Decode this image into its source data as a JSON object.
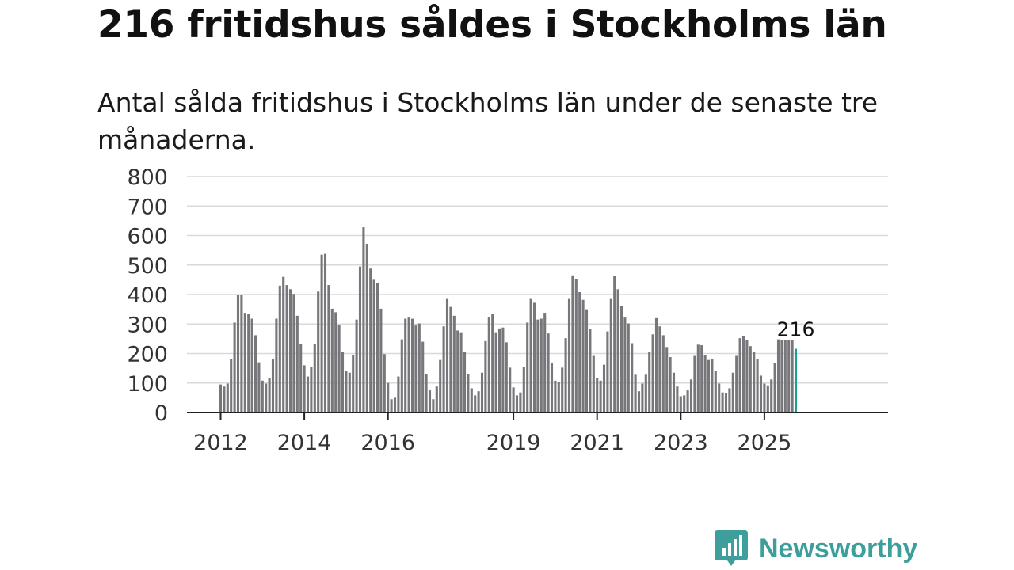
{
  "title": "216 fritidshus såldes i Stockholms län",
  "subtitle": "Antal sålda fritidshus i Stockholms län under de senaste tre månaderna.",
  "brand": "Newsworthy",
  "colors": {
    "bar": "#77777b",
    "highlight": "#1a9e96",
    "grid": "#d9d9d9",
    "axis": "#222222",
    "brand": "#3d9e9b"
  },
  "chart_data": {
    "type": "bar",
    "title": "216 fritidshus såldes i Stockholms län",
    "xlabel": "",
    "ylabel": "",
    "ylim": [
      0,
      800
    ],
    "y_ticks": [
      0,
      100,
      200,
      300,
      400,
      500,
      600,
      700,
      800
    ],
    "x_tick_labels": [
      "2012",
      "2014",
      "2016",
      "2019",
      "2021",
      "2023",
      "2025"
    ],
    "x_tick_index": [
      0,
      24,
      48,
      84,
      108,
      132,
      156
    ],
    "start": "2012-01",
    "end": "2025-09",
    "highlight_label": "216",
    "values": [
      95,
      88,
      98,
      180,
      305,
      398,
      400,
      338,
      335,
      318,
      262,
      170,
      108,
      98,
      118,
      180,
      318,
      430,
      460,
      432,
      418,
      402,
      328,
      232,
      160,
      122,
      155,
      232,
      410,
      535,
      538,
      432,
      352,
      340,
      298,
      205,
      142,
      135,
      195,
      315,
      495,
      628,
      572,
      488,
      450,
      440,
      352,
      198,
      100,
      45,
      50,
      122,
      248,
      318,
      322,
      318,
      295,
      302,
      240,
      130,
      75,
      45,
      88,
      178,
      292,
      385,
      358,
      328,
      278,
      272,
      205,
      130,
      82,
      58,
      72,
      135,
      242,
      322,
      335,
      272,
      285,
      288,
      238,
      152,
      85,
      58,
      68,
      155,
      305,
      385,
      372,
      315,
      318,
      338,
      268,
      168,
      108,
      102,
      152,
      252,
      385,
      465,
      452,
      408,
      382,
      350,
      282,
      192,
      118,
      108,
      162,
      275,
      385,
      462,
      418,
      362,
      322,
      302,
      235,
      128,
      72,
      98,
      128,
      205,
      265,
      320,
      292,
      262,
      222,
      188,
      135,
      88,
      55,
      58,
      75,
      112,
      192,
      230,
      228,
      195,
      178,
      182,
      140,
      98,
      68,
      65,
      82,
      135,
      192,
      252,
      258,
      245,
      225,
      205,
      182,
      125,
      98,
      92,
      112,
      168,
      248,
      245,
      245,
      245,
      245,
      216
    ]
  }
}
